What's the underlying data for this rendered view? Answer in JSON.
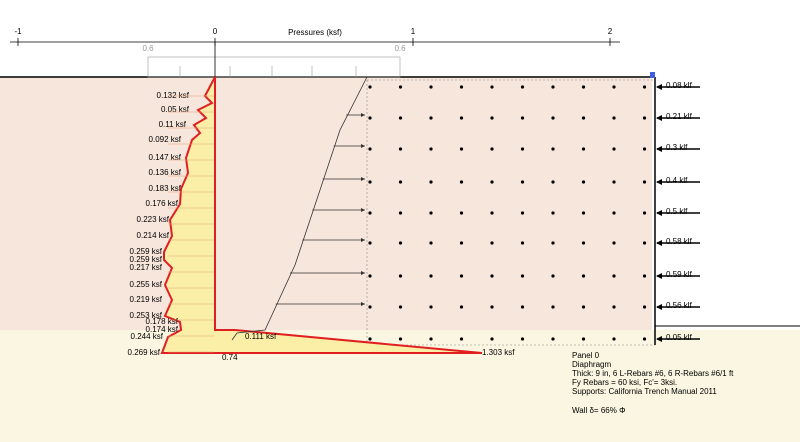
{
  "axis": {
    "title": "Pressures (ksf)",
    "ticks": [
      "-1",
      "0",
      "1",
      "2"
    ],
    "minor_labels": [
      "0.6",
      "0.6"
    ]
  },
  "active_labels": [
    "0.132 ksf",
    "0.05 ksf",
    "0.11 ksf",
    "0.092 ksf",
    "0.147 ksf",
    "0.136 ksf",
    "0.183 ksf",
    "0.176 ksf",
    "0.223 ksf",
    "0.214 ksf",
    "0.259 ksf",
    "0.259 ksf",
    "0.217 ksf",
    "0.255 ksf",
    "0.219 ksf",
    "0.253 ksf",
    "0.178 ksf",
    "0.174 ksf",
    "0.244 ksf",
    "0.269 ksf"
  ],
  "passive_labels": [
    "0.111 ksf",
    "1.303 ksf",
    "0.74"
  ],
  "loads": [
    "0.08 klf",
    "0.21 klf",
    "0.3 klf",
    "0.4 klf",
    "0.5 klf",
    "0.58 klf",
    "0.59 klf",
    "0.56 klf",
    "0.05 klf"
  ],
  "panel_info": [
    "Panel 0",
    "Diaphragm",
    "Thick: 9 in, 6 L-Rebars #6, 6 R-Rebars #6/1 ft",
    "Fy Rebars = 60 ksi, Fc'= 3ksi.",
    "Supports: California Trench Manual 2011",
    "Wall δ= 66% Φ"
  ]
}
